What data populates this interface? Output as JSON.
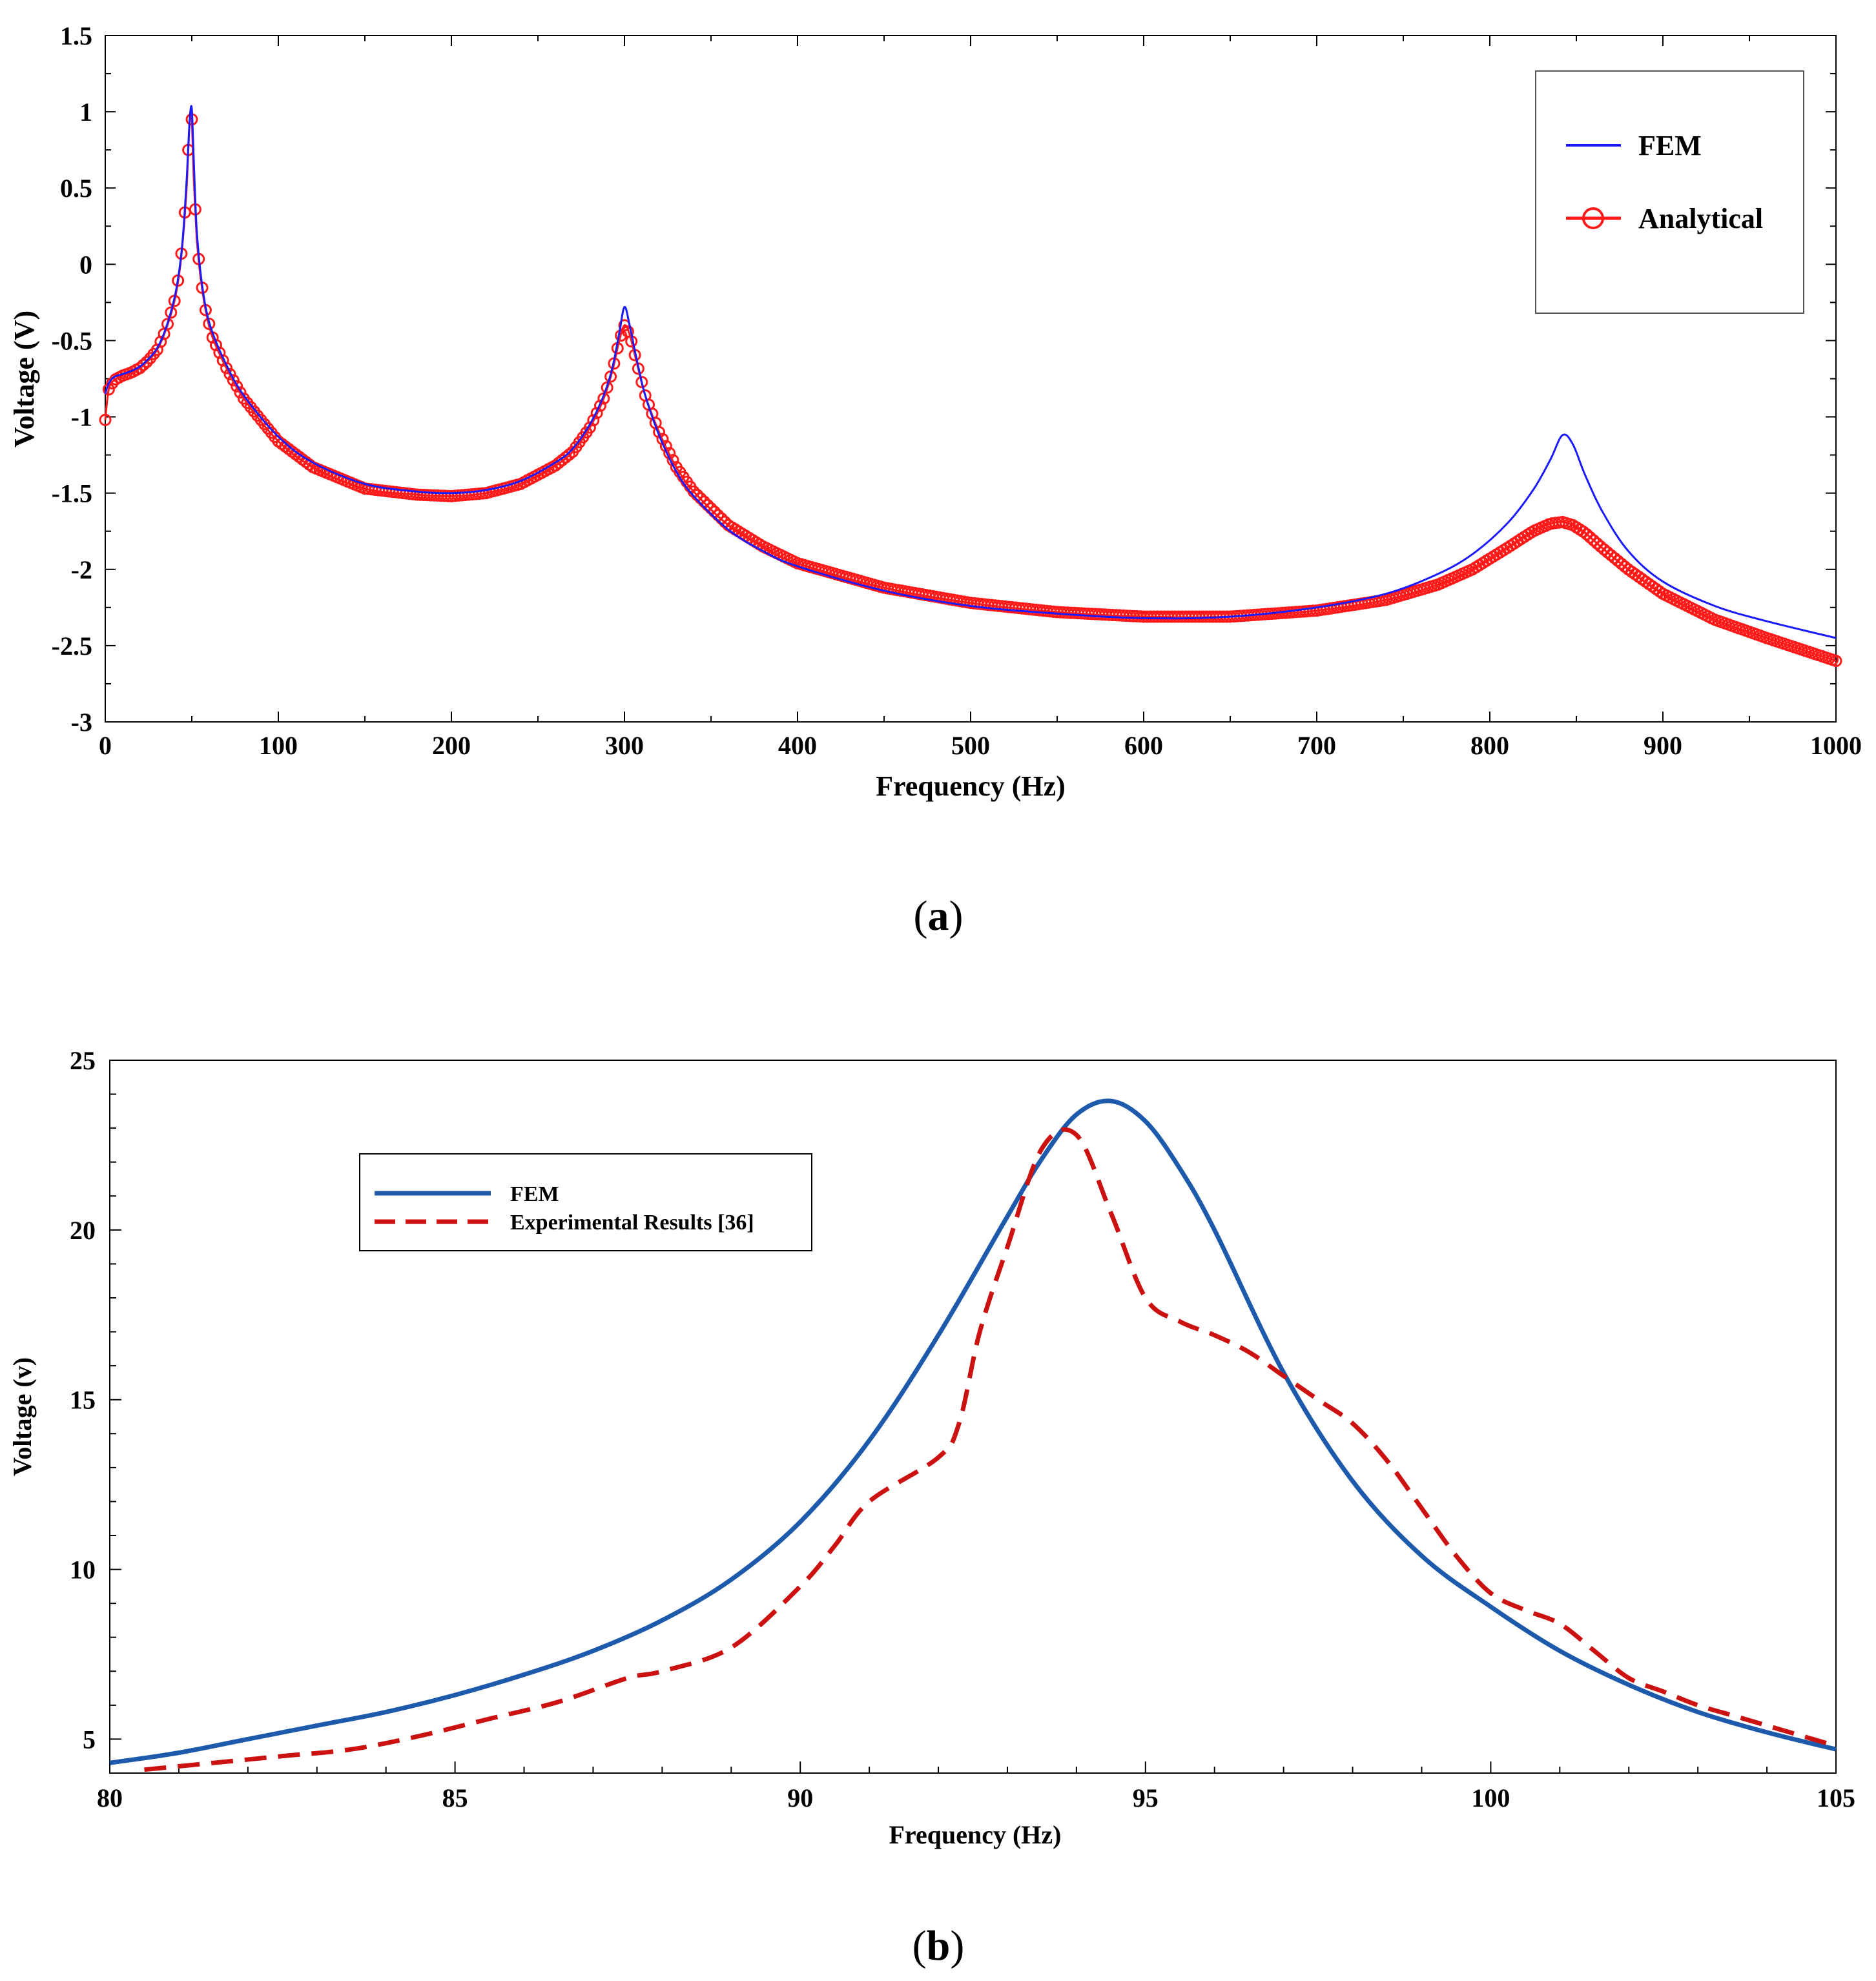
{
  "chart_data": [
    {
      "id": "a",
      "type": "line",
      "caption_letter": "a",
      "xlabel": "Frequency (Hz)",
      "ylabel": "Voltage (V)",
      "xlim": [
        0,
        1000
      ],
      "ylim": [
        -3,
        1.5
      ],
      "xticks": [
        0,
        100,
        200,
        300,
        400,
        500,
        600,
        700,
        800,
        900,
        1000
      ],
      "yticks": [
        -3,
        -2.5,
        -2,
        -1.5,
        -1,
        -0.5,
        0,
        0.5,
        1,
        1.5
      ],
      "ytick_labels": [
        "-3",
        "-2.5",
        "-2",
        "-1.5",
        "-1",
        "-0.5",
        "0",
        "0.5",
        "1",
        "1.5"
      ],
      "legend_position": "top-right",
      "colors": {
        "fem": "#1a1aff",
        "analytical": "#ff1a1a"
      },
      "series": [
        {
          "name": "FEM",
          "style": "solid",
          "x": [
            0,
            2,
            5,
            10,
            15,
            20,
            25,
            30,
            35,
            40,
            43,
            45,
            47,
            48,
            49,
            50,
            51,
            52,
            53,
            55,
            58,
            62,
            70,
            80,
            100,
            120,
            150,
            180,
            200,
            220,
            240,
            260,
            270,
            280,
            288,
            293,
            297,
            300,
            303,
            307,
            312,
            320,
            330,
            340,
            360,
            380,
            400,
            450,
            500,
            550,
            600,
            650,
            700,
            740,
            770,
            790,
            810,
            825,
            835,
            842,
            848,
            855,
            865,
            880,
            900,
            930,
            960,
            1000
          ],
          "y": [
            -0.85,
            -0.78,
            -0.74,
            -0.72,
            -0.7,
            -0.67,
            -0.62,
            -0.55,
            -0.42,
            -0.22,
            -0.02,
            0.2,
            0.55,
            0.78,
            0.98,
            1.02,
            0.72,
            0.42,
            0.2,
            -0.05,
            -0.28,
            -0.45,
            -0.66,
            -0.86,
            -1.13,
            -1.3,
            -1.44,
            -1.49,
            -1.5,
            -1.48,
            -1.42,
            -1.3,
            -1.21,
            -1.05,
            -0.86,
            -0.68,
            -0.45,
            -0.28,
            -0.4,
            -0.62,
            -0.86,
            -1.12,
            -1.36,
            -1.52,
            -1.74,
            -1.88,
            -1.98,
            -2.14,
            -2.24,
            -2.29,
            -2.32,
            -2.31,
            -2.25,
            -2.16,
            -2.03,
            -1.9,
            -1.7,
            -1.48,
            -1.28,
            -1.12,
            -1.18,
            -1.38,
            -1.62,
            -1.88,
            -2.08,
            -2.24,
            -2.34,
            -2.45
          ]
        },
        {
          "name": "Analytical",
          "style": "circles",
          "x": [
            0,
            2,
            5,
            10,
            15,
            20,
            25,
            30,
            35,
            40,
            43,
            45,
            47,
            48,
            49,
            50,
            51,
            52,
            53,
            55,
            58,
            62,
            70,
            80,
            100,
            120,
            150,
            180,
            200,
            220,
            240,
            260,
            270,
            280,
            288,
            293,
            297,
            300,
            303,
            307,
            312,
            320,
            330,
            340,
            360,
            380,
            400,
            450,
            500,
            550,
            600,
            650,
            700,
            740,
            770,
            790,
            810,
            825,
            835,
            842,
            848,
            855,
            865,
            880,
            900,
            930,
            960,
            1000
          ],
          "y": [
            -1.02,
            -0.82,
            -0.76,
            -0.73,
            -0.71,
            -0.68,
            -0.63,
            -0.56,
            -0.43,
            -0.24,
            -0.04,
            0.18,
            0.5,
            0.75,
            0.97,
            0.95,
            0.6,
            0.36,
            0.15,
            -0.08,
            -0.3,
            -0.48,
            -0.68,
            -0.88,
            -1.16,
            -1.33,
            -1.47,
            -1.51,
            -1.52,
            -1.5,
            -1.44,
            -1.32,
            -1.23,
            -1.07,
            -0.88,
            -0.7,
            -0.5,
            -0.4,
            -0.46,
            -0.64,
            -0.86,
            -1.1,
            -1.33,
            -1.49,
            -1.71,
            -1.85,
            -1.96,
            -2.12,
            -2.22,
            -2.28,
            -2.31,
            -2.31,
            -2.27,
            -2.2,
            -2.1,
            -2.0,
            -1.86,
            -1.75,
            -1.7,
            -1.69,
            -1.71,
            -1.76,
            -1.86,
            -2.0,
            -2.16,
            -2.33,
            -2.45,
            -2.6
          ]
        }
      ]
    },
    {
      "id": "b",
      "type": "line",
      "caption_letter": "b",
      "xlabel": "Frequency (Hz)",
      "ylabel": "Voltage (v)",
      "xlim": [
        80,
        105
      ],
      "ylim": [
        4,
        25
      ],
      "xticks": [
        80,
        85,
        90,
        95,
        100,
        105
      ],
      "yticks": [
        5,
        10,
        15,
        20,
        25
      ],
      "legend_position": "top-left",
      "colors": {
        "fem": "#1d5aab",
        "experimental": "#cc1111"
      },
      "series": [
        {
          "name": "FEM",
          "style": "solid",
          "x": [
            80,
            81,
            82,
            83,
            84,
            85,
            86,
            87,
            88,
            89,
            90,
            91,
            92,
            93,
            93.5,
            94,
            94.5,
            95,
            95.5,
            96,
            97,
            98,
            99,
            100,
            101,
            102,
            103,
            104,
            105
          ],
          "y": [
            4.3,
            4.6,
            5.0,
            5.4,
            5.8,
            6.3,
            6.9,
            7.6,
            8.5,
            9.7,
            11.4,
            13.8,
            16.9,
            20.4,
            22.1,
            23.4,
            23.8,
            23.2,
            21.8,
            20.0,
            15.8,
            12.6,
            10.4,
            8.9,
            7.6,
            6.6,
            5.8,
            5.2,
            4.7
          ]
        },
        {
          "name": "Experimental Results [36]",
          "style": "dashed",
          "x": [
            80.5,
            81.5,
            82.5,
            83.5,
            84.5,
            85.5,
            86.5,
            87.5,
            88,
            89,
            90,
            90.5,
            91,
            92,
            92.3,
            92.6,
            93,
            93.5,
            94,
            94.5,
            95,
            95.5,
            96,
            96.5,
            97,
            97.5,
            98,
            98.5,
            99,
            99.5,
            100,
            100.5,
            101,
            101.5,
            102,
            102.5,
            103,
            103.5,
            104,
            104.5,
            105
          ],
          "y": [
            4.1,
            4.3,
            4.5,
            4.7,
            5.1,
            5.6,
            6.1,
            6.8,
            7.0,
            7.7,
            9.5,
            10.7,
            12.0,
            13.3,
            14.3,
            17.0,
            19.5,
            22.4,
            22.8,
            20.5,
            18.0,
            17.3,
            16.9,
            16.4,
            15.7,
            15.0,
            14.3,
            13.2,
            11.8,
            10.4,
            9.3,
            8.8,
            8.4,
            7.6,
            6.8,
            6.4,
            6.0,
            5.7,
            5.4,
            5.1,
            4.8
          ]
        }
      ]
    }
  ]
}
